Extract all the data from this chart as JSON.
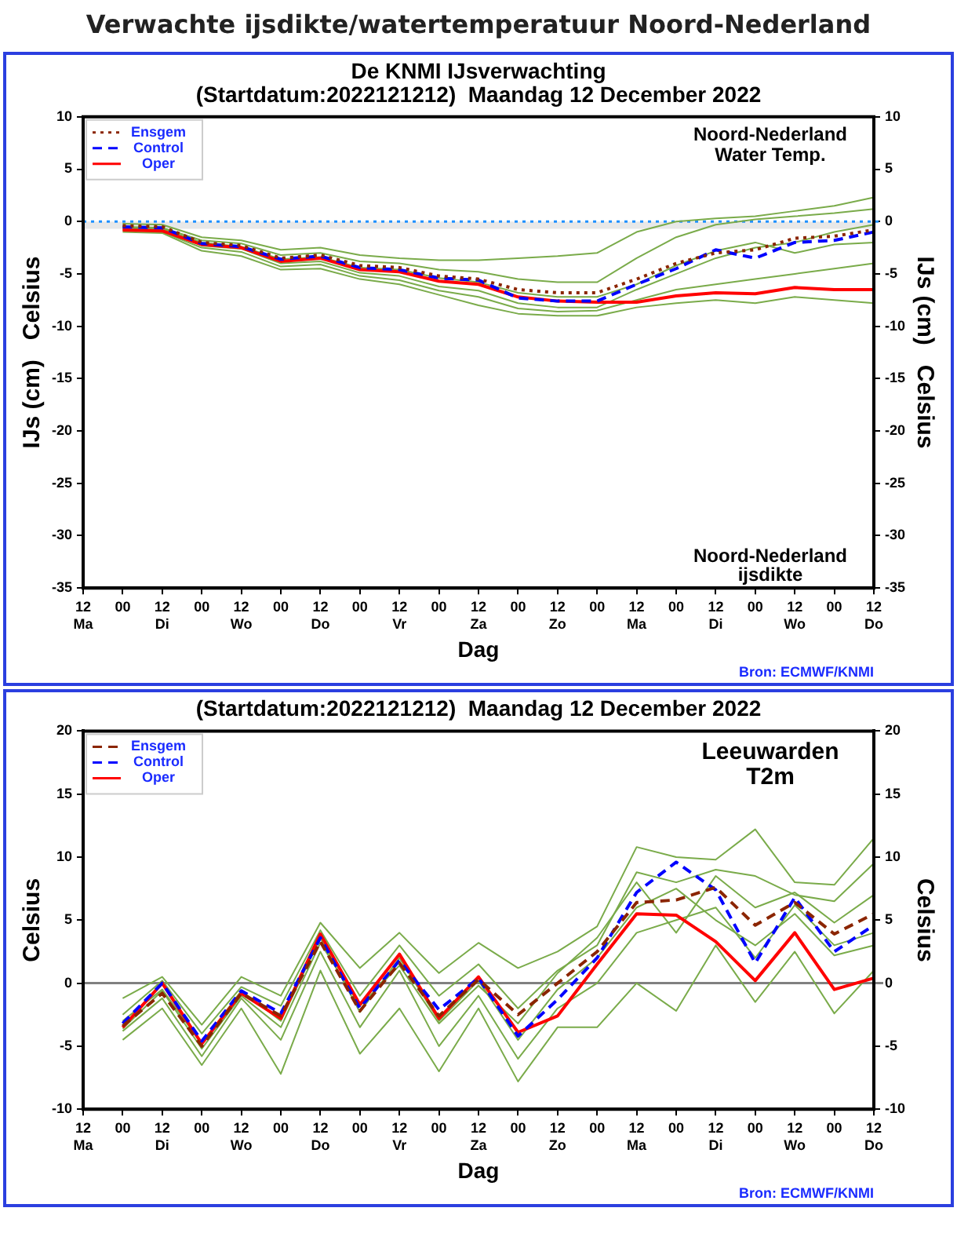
{
  "chart_data": [
    {
      "type": "line",
      "title": "Verwachte ijsdikte/watertemperatuur Noord-Nederland",
      "subtitle": "De KNMI IJsverwachting\n(Startdatum:2022121212)  Maandag 12 December 2022",
      "xlabel": "Dag",
      "ylabel": "IJs (cm)   Celsius",
      "y2label": "IJs (cm)   Celsius",
      "annotations": [
        "Noord-Nederland\nWater Temp.",
        "Noord-Nederland\nijsdikte",
        "Bron: ECMWF/KNMI"
      ],
      "categories": [
        "12\nMa",
        "00",
        "12\nDi",
        "00",
        "12\nWo",
        "00",
        "12\nDo",
        "00",
        "12\nVr",
        "00",
        "12\nZa",
        "00",
        "12\nZo",
        "00",
        "12\nMa",
        "00",
        "12\nDi",
        "00",
        "12\nWo",
        "00",
        "12\nDo"
      ],
      "ylim": [
        -35,
        10
      ],
      "yticks": [
        -35,
        -30,
        -25,
        -20,
        -15,
        -10,
        -5,
        0,
        5,
        10
      ],
      "y2lim": [
        -35,
        10
      ],
      "y2ticks": [
        -35,
        -30,
        -25,
        -20,
        -15,
        -10,
        -5,
        0,
        5,
        10
      ],
      "grid": false,
      "legend": "top left",
      "marker": "none",
      "ref_lines": [
        {
          "axis": "y",
          "value": 0,
          "color": "#1e90ff",
          "line_style": "dotted"
        }
      ],
      "bands": [
        {
          "axis": "y",
          "from": -0.7,
          "to": 0,
          "color": "#e8e8e8"
        }
      ],
      "series": [
        {
          "name": "Ensgem",
          "color": "#8b2500",
          "line_style": "dotted",
          "values": [
            null,
            -0.4,
            -0.5,
            -2,
            -2.3,
            -3.5,
            -3.2,
            -4.2,
            -4.4,
            -5.2,
            -5.5,
            -6.5,
            -6.8,
            -6.8,
            -5.5,
            -4,
            -3,
            -2.7,
            -1.6,
            -1.4,
            -0.8
          ]
        },
        {
          "name": "Control",
          "color": "#0000ff",
          "line_style": "dashed",
          "values": [
            null,
            -0.5,
            -0.6,
            -2.1,
            -2.4,
            -3.6,
            -3.3,
            -4.4,
            -4.6,
            -5.4,
            -5.6,
            -7.3,
            -7.6,
            -7.6,
            -6,
            -4.5,
            -2.7,
            -3.5,
            -2,
            -1.8,
            -1
          ]
        },
        {
          "name": "Oper",
          "color": "#ff0000",
          "line_style": "solid",
          "values": [
            null,
            -0.8,
            -0.9,
            -2.2,
            -2.5,
            -3.8,
            -3.5,
            -4.6,
            -4.8,
            -5.7,
            -6,
            -7.2,
            -7.6,
            -7.7,
            -7.7,
            -7.1,
            -6.8,
            -6.9,
            -6.3,
            -6.5,
            -6.5
          ]
        },
        {
          "color": "#7aab4a",
          "line_style": "solid",
          "values": [
            null,
            -0.2,
            -0.3,
            -1.5,
            -1.8,
            -2.7,
            -2.5,
            -3.2,
            -3.5,
            -3.7,
            -3.7,
            -3.5,
            -3.3,
            -3,
            -1,
            0,
            0.3,
            0.5,
            1,
            1.5,
            2.3
          ]
        },
        {
          "color": "#7aab4a",
          "line_style": "solid",
          "values": [
            null,
            -1,
            -1.1,
            -2.8,
            -3.3,
            -4.6,
            -4.5,
            -5.5,
            -6,
            -7,
            -8,
            -8.8,
            -9,
            -9,
            -8.2,
            -7.8,
            -7.5,
            -7.8,
            -7.2,
            -7.5,
            -7.8
          ]
        },
        {
          "color": "#7aab4a",
          "line_style": "solid",
          "values": [
            null,
            -0.5,
            -0.6,
            -1.8,
            -2.1,
            -3.2,
            -3,
            -3.8,
            -4,
            -4.6,
            -4.8,
            -5.5,
            -5.8,
            -5.8,
            -3.5,
            -1.5,
            -0.3,
            0.2,
            0.5,
            0.8,
            1.2
          ]
        },
        {
          "color": "#7aab4a",
          "line_style": "solid",
          "values": [
            null,
            -0.7,
            -0.8,
            -2.3,
            -2.6,
            -4,
            -3.8,
            -4.9,
            -5.2,
            -6.2,
            -6.6,
            -7.8,
            -8.2,
            -8.2,
            -6.5,
            -5,
            -3.5,
            -2.5,
            -2,
            -1,
            -0.3
          ]
        },
        {
          "color": "#7aab4a",
          "line_style": "solid",
          "values": [
            null,
            -0.6,
            -0.7,
            -2,
            -2.4,
            -3.6,
            -3.4,
            -4.4,
            -4.6,
            -5.4,
            -5.8,
            -6.8,
            -7.2,
            -7.2,
            -6,
            -4.2,
            -2.8,
            -2,
            -3,
            -2.2,
            -2
          ]
        },
        {
          "color": "#7aab4a",
          "line_style": "solid",
          "values": [
            null,
            -0.8,
            -1,
            -2.5,
            -2.9,
            -4.3,
            -4.1,
            -5.2,
            -5.6,
            -6.6,
            -7.2,
            -8.3,
            -8.6,
            -8.5,
            -7.5,
            -6.5,
            -6,
            -5.5,
            -5,
            -4.5,
            -4
          ]
        }
      ]
    },
    {
      "type": "line",
      "title": "(Startdatum:2022121212)  Maandag 12 December 2022",
      "xlabel": "Dag",
      "ylabel": "Celsius",
      "y2label": "Celsius",
      "annotations": [
        "Leeuwarden\nT2m",
        "Bron: ECMWF/KNMI"
      ],
      "categories": [
        "12\nMa",
        "00",
        "12\nDi",
        "00",
        "12\nWo",
        "00",
        "12\nDo",
        "00",
        "12\nVr",
        "00",
        "12\nZa",
        "00",
        "12\nZo",
        "00",
        "12\nMa",
        "00",
        "12\nDi",
        "00",
        "12\nWo",
        "00",
        "12\nDo"
      ],
      "ylim": [
        -10,
        20
      ],
      "yticks": [
        -10,
        -5,
        0,
        5,
        10,
        15,
        20
      ],
      "y2lim": [
        -10,
        20
      ],
      "y2ticks": [
        -10,
        -5,
        0,
        5,
        10,
        15,
        20
      ],
      "grid": false,
      "legend": "top left",
      "marker": "none",
      "ref_lines": [
        {
          "axis": "y",
          "value": 0,
          "color": "#808080",
          "line_style": "solid"
        }
      ],
      "series": [
        {
          "name": "Ensgem",
          "color": "#8b2500",
          "line_style": "dashed",
          "values": [
            null,
            -3.4,
            -0.8,
            -5,
            -0.8,
            -2.6,
            3.3,
            -2.2,
            1.6,
            -2.6,
            0.3,
            -2.5,
            0,
            2.5,
            6.4,
            6.6,
            7.6,
            4.6,
            6.4,
            3.9,
            5.5
          ]
        },
        {
          "name": "Control",
          "color": "#0000ff",
          "line_style": "dashed",
          "values": [
            null,
            -3.2,
            0,
            -4.6,
            -0.6,
            -2.4,
            3.6,
            -2,
            1.8,
            -2.1,
            0.4,
            -4.2,
            -1.3,
            2,
            7.2,
            9.6,
            7.4,
            1.6,
            6.8,
            2.5,
            4.6
          ]
        },
        {
          "name": "Oper",
          "color": "#ff0000",
          "line_style": "solid",
          "values": [
            null,
            -3.5,
            0,
            -4.8,
            -0.8,
            -2.8,
            3.9,
            -1.7,
            2.3,
            -2.8,
            0.5,
            -3.9,
            -2.6,
            1.5,
            5.5,
            5.4,
            3.3,
            0.2,
            4,
            -0.5,
            0.4
          ]
        },
        {
          "color": "#7aab4a",
          "line_style": "solid",
          "values": [
            null,
            -1.2,
            0.5,
            -3.3,
            0.5,
            -1,
            4.8,
            1.2,
            4,
            0.8,
            3.2,
            1.2,
            2.5,
            4.5,
            10.8,
            10,
            9.8,
            12.2,
            8,
            7.8,
            11.5
          ]
        },
        {
          "color": "#7aab4a",
          "line_style": "solid",
          "values": [
            null,
            -4.5,
            -2,
            -6.5,
            -2,
            -7.2,
            1,
            -5.6,
            -2,
            -7,
            -2,
            -7.8,
            -3.5,
            -3.5,
            0,
            -2.2,
            3,
            -1.5,
            2.5,
            -2.4,
            1
          ]
        },
        {
          "color": "#7aab4a",
          "line_style": "solid",
          "values": [
            null,
            -2.5,
            0.2,
            -4,
            -0.3,
            -1.8,
            4.2,
            -1,
            3,
            -1,
            1.5,
            -2,
            1,
            3,
            8.8,
            8,
            9,
            8.5,
            7,
            6.5,
            9.5
          ]
        },
        {
          "color": "#7aab4a",
          "line_style": "solid",
          "values": [
            null,
            -3.8,
            -1.2,
            -5.8,
            -1.2,
            -4.5,
            2.5,
            -3.5,
            1,
            -5,
            -1,
            -6,
            -2,
            0,
            4,
            5,
            6,
            2,
            6.2,
            3,
            4
          ]
        },
        {
          "color": "#7aab4a",
          "line_style": "solid",
          "values": [
            null,
            -3,
            -0.5,
            -4.8,
            -0.6,
            -3,
            3.6,
            -2.3,
            2,
            -3,
            0.2,
            -4.5,
            -0.5,
            2,
            6,
            7.5,
            5,
            3,
            5.5,
            2.2,
            3
          ]
        },
        {
          "color": "#7aab4a",
          "line_style": "solid",
          "values": [
            null,
            -3.6,
            -0.6,
            -5.2,
            -1,
            -3.5,
            3.2,
            -1.8,
            1.4,
            -3.2,
            -0.2,
            -3.2,
            0.8,
            3.6,
            8,
            4,
            8.5,
            6,
            7.2,
            4.8,
            7
          ]
        }
      ]
    }
  ]
}
